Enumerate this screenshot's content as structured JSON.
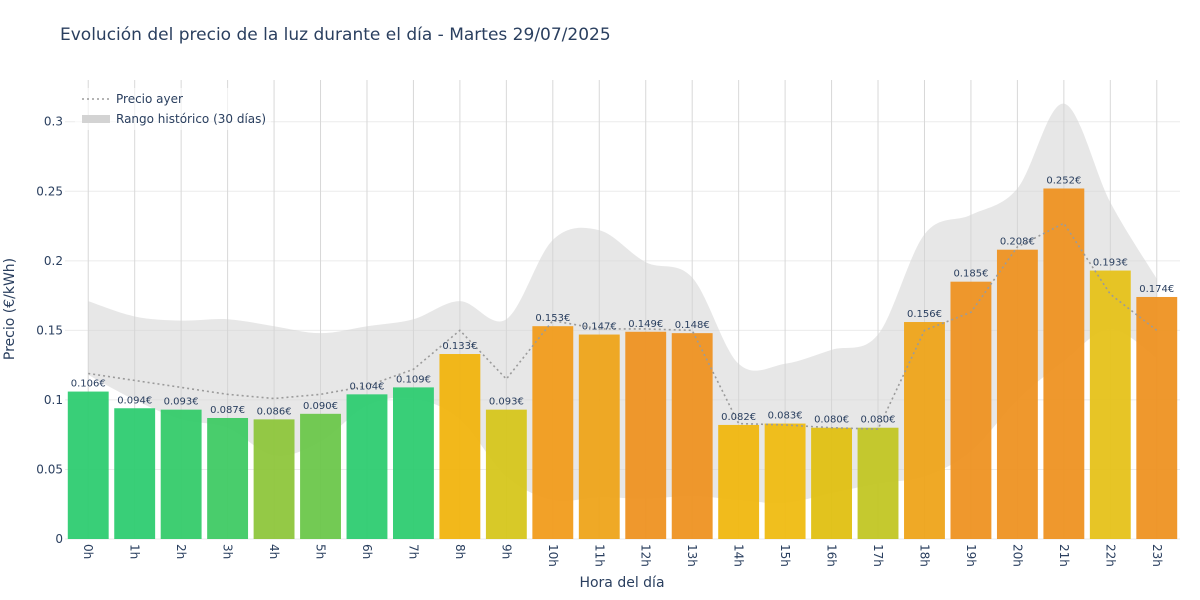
{
  "chart_data": {
    "type": "bar",
    "title": "Evolución del precio de la luz durante el día - Martes 29/07/2025",
    "xlabel": "Hora del día",
    "ylabel": "Precio (€/kWh)",
    "ylim": [
      0,
      0.33
    ],
    "yticks": [
      0,
      0.05,
      0.1,
      0.15,
      0.2,
      0.25,
      0.3
    ],
    "ytick_labels": [
      "0",
      "0.05",
      "0.1",
      "0.15",
      "0.2",
      "0.25",
      "0.3"
    ],
    "grid": true,
    "legend_position": "top-left",
    "categories": [
      "0h",
      "1h",
      "2h",
      "3h",
      "4h",
      "5h",
      "6h",
      "7h",
      "8h",
      "9h",
      "10h",
      "11h",
      "12h",
      "13h",
      "14h",
      "15h",
      "16h",
      "17h",
      "18h",
      "19h",
      "20h",
      "21h",
      "22h",
      "23h"
    ],
    "series": [
      {
        "values": [
          0.106,
          0.094,
          0.093,
          0.087,
          0.086,
          0.09,
          0.104,
          0.109,
          0.133,
          0.093,
          0.153,
          0.147,
          0.149,
          0.148,
          0.082,
          0.083,
          0.08,
          0.08,
          0.156,
          0.185,
          0.208,
          0.252,
          0.193,
          0.174
        ],
        "labels": [
          "0.106€",
          "0.094€",
          "0.093€",
          "0.087€",
          "0.086€",
          "0.090€",
          "0.104€",
          "0.109€",
          "0.133€",
          "0.093€",
          "0.153€",
          "0.147€",
          "0.149€",
          "0.148€",
          "0.082€",
          "0.083€",
          "0.080€",
          "0.080€",
          "0.156€",
          "0.185€",
          "0.208€",
          "0.252€",
          "0.193€",
          "0.174€"
        ],
        "colors": [
          "#2ecc71",
          "#2ecc71",
          "#35cb6a",
          "#3fca64",
          "#8ec63c",
          "#6cc74b",
          "#2ecc71",
          "#2ecc71",
          "#f1b40f",
          "#d6c61c",
          "#f19c1c",
          "#eea41a",
          "#ee9222",
          "#ee9222",
          "#f0b710",
          "#efbc12",
          "#e0c012",
          "#c2c624",
          "#eea41a",
          "#ee9222",
          "#ee9222",
          "#ee9222",
          "#e6c21a",
          "#ee9222"
        ]
      },
      {
        "name": "Precio ayer",
        "style": "dotted",
        "color": "#9b9b9b",
        "values": [
          0.119,
          0.114,
          0.109,
          0.104,
          0.101,
          0.104,
          0.11,
          0.122,
          0.15,
          0.115,
          0.157,
          0.151,
          0.151,
          0.15,
          0.083,
          0.082,
          0.08,
          0.079,
          0.15,
          0.163,
          0.21,
          0.227,
          0.176,
          0.15
        ]
      },
      {
        "name": "Rango histórico (30 días)",
        "type": "band",
        "color": "#d3d3d3",
        "upper": [
          0.171,
          0.16,
          0.157,
          0.158,
          0.153,
          0.148,
          0.153,
          0.158,
          0.171,
          0.158,
          0.215,
          0.222,
          0.199,
          0.188,
          0.126,
          0.126,
          0.136,
          0.147,
          0.219,
          0.233,
          0.252,
          0.313,
          0.242,
          0.187
        ],
        "lower": [
          0.118,
          0.1,
          0.086,
          0.08,
          0.06,
          0.07,
          0.096,
          0.101,
          0.086,
          0.045,
          0.028,
          0.03,
          0.029,
          0.031,
          0.028,
          0.026,
          0.033,
          0.04,
          0.045,
          0.063,
          0.1,
          0.128,
          0.151,
          0.13
        ]
      }
    ]
  }
}
